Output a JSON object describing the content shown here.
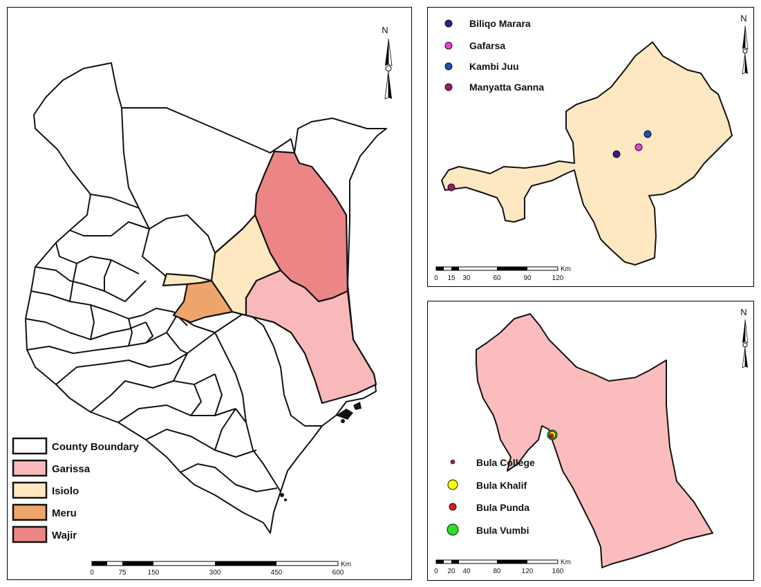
{
  "main_map": {
    "legend": [
      {
        "label": "County Boundary",
        "color": "#ffffff"
      },
      {
        "label": "Garissa",
        "color": "#f9b9ba"
      },
      {
        "label": "Isiolo",
        "color": "#fde8c2"
      },
      {
        "label": "Meru",
        "color": "#eea56c"
      },
      {
        "label": "Wajir",
        "color": "#ec8686"
      }
    ],
    "scale": {
      "unit": "Km",
      "ticks": [
        "0",
        "75",
        "150",
        "300",
        "450",
        "600"
      ]
    }
  },
  "isiolo_map": {
    "north_label": "N",
    "fill_color": "#fde8c2",
    "legend": [
      {
        "label": "Biliqo Marara",
        "color": "#3a1a8c"
      },
      {
        "label": "Gafarsa",
        "color": "#f03fd8"
      },
      {
        "label": "Kambi Juu",
        "color": "#1d4fb0"
      },
      {
        "label": "Manyatta Ganna",
        "color": "#a0176b"
      }
    ],
    "scale": {
      "unit": "Km",
      "ticks": [
        "0",
        "15",
        "30",
        "60",
        "90",
        "120"
      ]
    }
  },
  "garissa_map": {
    "north_label": "N",
    "fill_color": "#fbbcbd",
    "legend": [
      {
        "label": "Bula College",
        "color": "#a0176b"
      },
      {
        "label": "Bula Khalif",
        "color": "#ffff00"
      },
      {
        "label": "Bula Punda",
        "color": "#e51a1a"
      },
      {
        "label": "Bula Vumbi",
        "color": "#2ee02e"
      }
    ],
    "scale": {
      "unit": "Km",
      "ticks": [
        "0",
        "20",
        "40",
        "80",
        "120",
        "160"
      ]
    }
  },
  "main_north_label": "N"
}
